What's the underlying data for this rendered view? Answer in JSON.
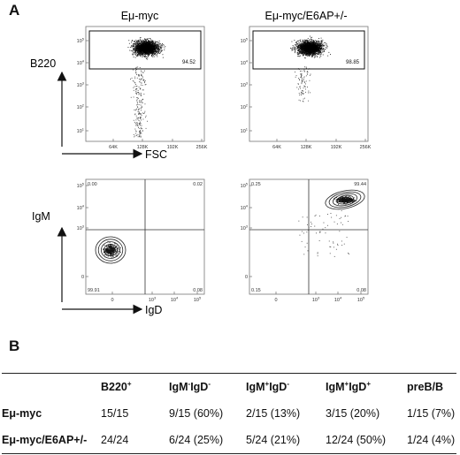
{
  "panel_a": {
    "letter": "A",
    "col_titles": [
      "Eμ-myc",
      "Eμ-myc/E6AP+/-"
    ],
    "top_row": {
      "y_label": "B220",
      "x_label": "FSC",
      "y_ticks": [
        "10^1",
        "10^2",
        "10^3",
        "10^4",
        "10^5"
      ],
      "x_ticks": [
        "64K",
        "128K",
        "192K",
        "256K"
      ],
      "gates": [
        "94.52",
        "98.85"
      ]
    },
    "bottom_row": {
      "y_label": "IgM",
      "x_label": "IgD",
      "y_ticks": [
        "0",
        "10^3",
        "10^4",
        "10^5"
      ],
      "x_ticks": [
        "0",
        "10^3",
        "10^4",
        "10^5"
      ],
      "plots": [
        {
          "quadrants": [
            "0.00",
            "0.02",
            "99.91",
            "0.08"
          ],
          "cluster": "IgM-IgD-"
        },
        {
          "quadrants": [
            "0.25",
            "99.44",
            "0.15",
            "0.08"
          ],
          "cluster": "IgM+IgD+"
        }
      ]
    }
  },
  "panel_b": {
    "letter": "B",
    "headers": [
      {
        "base": "",
        "sup1": "",
        "mid": "",
        "sup2": ""
      },
      {
        "base": "B220",
        "sup1": "+",
        "mid": "",
        "sup2": ""
      },
      {
        "base": "IgM",
        "sup1": "-",
        "mid": "IgD",
        "sup2": "-"
      },
      {
        "base": "IgM",
        "sup1": "+",
        "mid": "IgD",
        "sup2": "-"
      },
      {
        "base": "IgM",
        "sup1": "+",
        "mid": "IgD",
        "sup2": "+"
      },
      {
        "base": "preB/B",
        "sup1": "",
        "mid": "",
        "sup2": ""
      }
    ],
    "rows": [
      [
        "Eμ-myc",
        "15/15",
        "9/15 (60%)",
        "2/15 (13%)",
        "3/15 (20%)",
        "1/15 (7%)"
      ],
      [
        "Eμ-myc/E6AP+/-",
        "24/24",
        "6/24 (25%)",
        "5/24 (21%)",
        "12/24 (50%)",
        "1/24 (4%)"
      ]
    ]
  }
}
